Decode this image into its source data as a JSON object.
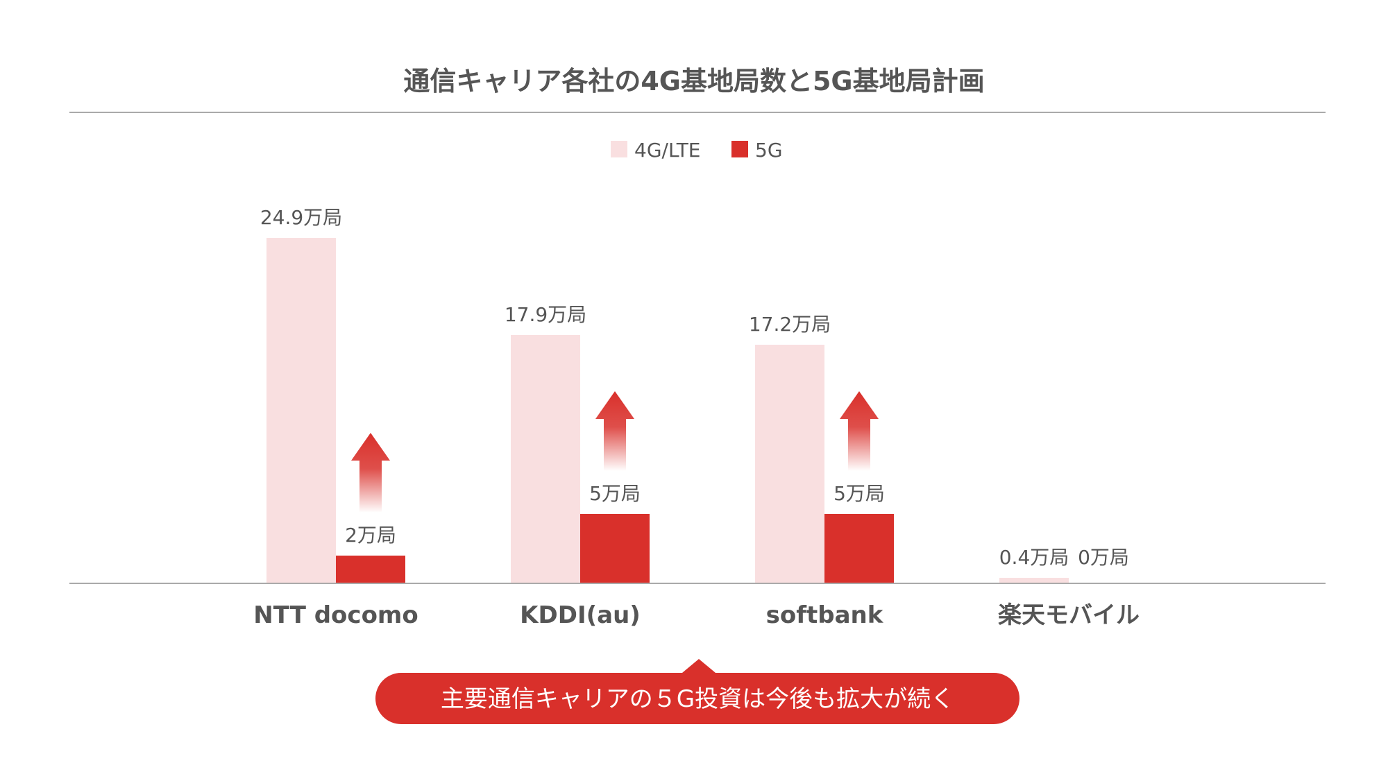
{
  "chart_data": {
    "type": "bar",
    "title": "通信キャリア各社の4G基地局数と5G基地局計画",
    "categories": [
      "NTT docomo",
      "KDDI(au)",
      "softbank",
      "楽天モバイル"
    ],
    "series": [
      {
        "name": "4G/LTE",
        "values": [
          24.9,
          17.9,
          17.2,
          0.4
        ],
        "labels": [
          "24.9万局",
          "17.9万局",
          "17.2万局",
          "0.4万局"
        ]
      },
      {
        "name": "5G",
        "values": [
          2,
          5,
          5,
          0
        ],
        "labels": [
          "2万局",
          "5万局",
          "5万局",
          "0万局"
        ]
      }
    ],
    "legend_position": "top-center",
    "grid": false,
    "ylim": [
      0,
      25
    ],
    "annotation": "主要通信キャリアの５G投資は今後も拡大が続く"
  },
  "colors": {
    "series_4g": "#f9dfe0",
    "series_5g": "#d9302b",
    "callout": "#d9302b",
    "axis": "#aaaaaa",
    "text": "#555555"
  }
}
